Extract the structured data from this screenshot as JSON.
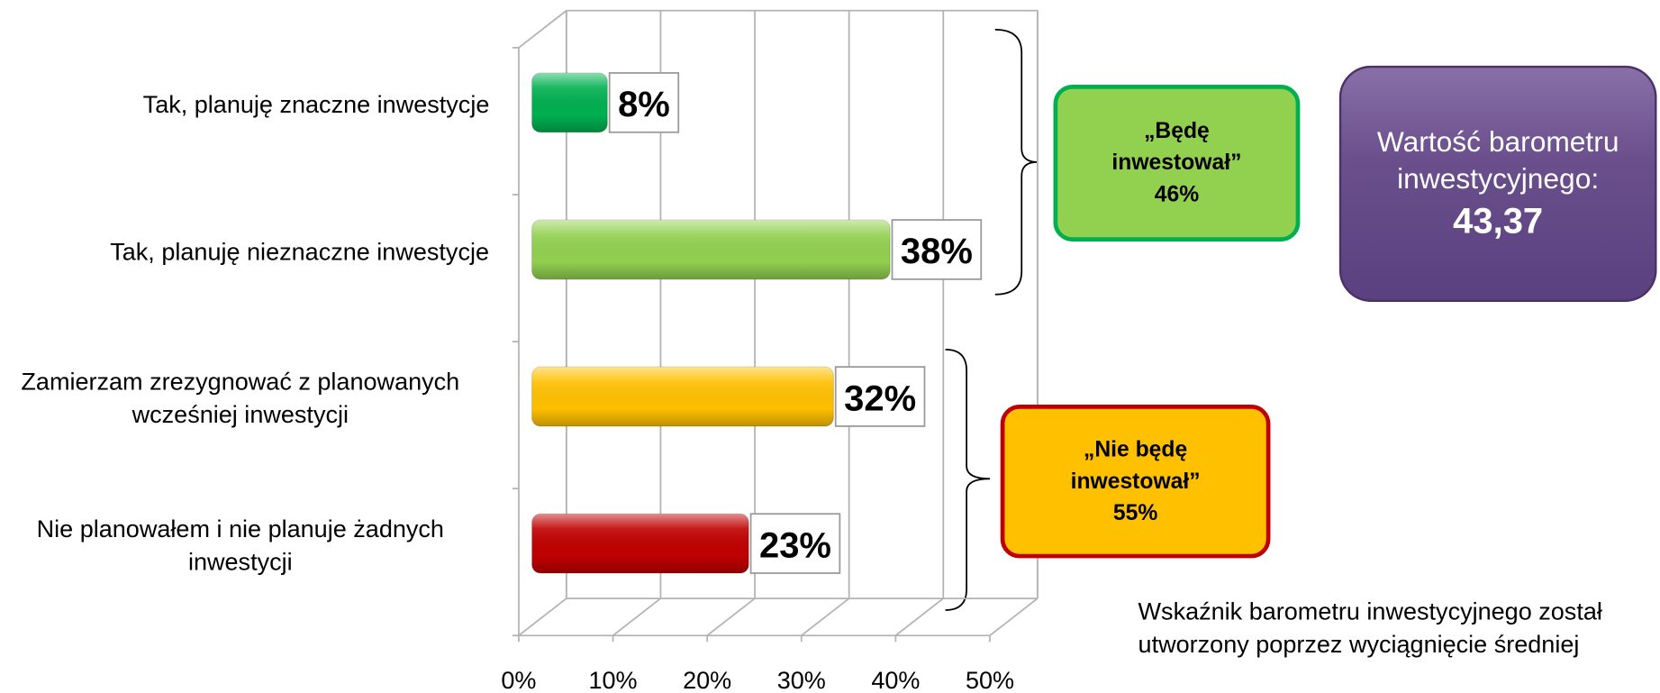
{
  "chart_data": {
    "type": "bar",
    "orientation": "horizontal",
    "categories": [
      "Tak, planuję znaczne inwestycje",
      "Tak, planuję nieznaczne inwestycje",
      "Zamierzam zrezygnować z planowanych wcześniej inwestycji",
      "Nie planowałem i nie planuje żadnych inwestycji"
    ],
    "values": [
      8,
      38,
      32,
      23
    ],
    "value_labels": [
      "8%",
      "38%",
      "32%",
      "23%"
    ],
    "colors": [
      "#00b050",
      "#92d050",
      "#ffc000",
      "#c00000"
    ],
    "xlim": [
      0,
      50
    ],
    "xticks": [
      {
        "value": 0,
        "label": "0%"
      },
      {
        "value": 10,
        "label": "10%"
      },
      {
        "value": 20,
        "label": "20%"
      },
      {
        "value": 30,
        "label": "30%"
      },
      {
        "value": 40,
        "label": "40%"
      },
      {
        "value": 50,
        "label": "50%"
      }
    ],
    "grid": true,
    "groups": [
      {
        "label": "„Będę inwestował”",
        "value": 46,
        "value_label": "46%",
        "color": "#92d050",
        "border": "#00b050"
      },
      {
        "label": "„Nie będę inwestował”",
        "value": 55,
        "value_label": "55%",
        "color": "#ffc000",
        "border": "#c00000"
      }
    ],
    "barometer": {
      "label": "Wartość barometru inwestycyjnego:",
      "value": 43.37,
      "value_label": "43,37"
    },
    "note": "Wskaźnik barometru inwestycyjnego został utworzony poprzez wyciągnięcie średniej"
  }
}
